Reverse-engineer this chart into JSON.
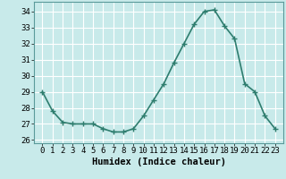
{
  "x": [
    0,
    1,
    2,
    3,
    4,
    5,
    6,
    7,
    8,
    9,
    10,
    11,
    12,
    13,
    14,
    15,
    16,
    17,
    18,
    19,
    20,
    21,
    22,
    23
  ],
  "y": [
    29.0,
    27.8,
    27.1,
    27.0,
    27.0,
    27.0,
    26.7,
    26.5,
    26.5,
    26.7,
    27.5,
    28.5,
    29.5,
    30.8,
    32.0,
    33.2,
    34.0,
    34.1,
    33.1,
    32.3,
    29.5,
    29.0,
    27.5,
    26.7
  ],
  "line_color": "#2e7d6e",
  "marker": "+",
  "background_color": "#c8eaea",
  "grid_color": "#ffffff",
  "xlabel": "Humidex (Indice chaleur)",
  "ylim": [
    25.8,
    34.6
  ],
  "yticks": [
    26,
    27,
    28,
    29,
    30,
    31,
    32,
    33,
    34
  ],
  "xticks": [
    0,
    1,
    2,
    3,
    4,
    5,
    6,
    7,
    8,
    9,
    10,
    11,
    12,
    13,
    14,
    15,
    16,
    17,
    18,
    19,
    20,
    21,
    22,
    23
  ],
  "tick_fontsize": 6.5,
  "label_fontsize": 7.5,
  "linewidth": 1.2,
  "markersize": 4,
  "xlim": [
    -0.8,
    23.8
  ]
}
